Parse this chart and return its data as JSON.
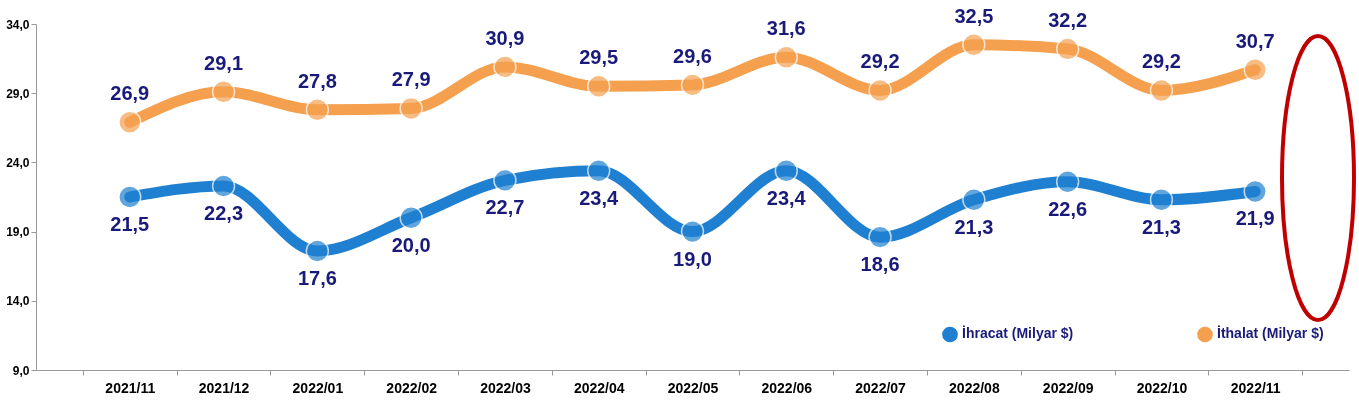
{
  "chart_data": {
    "type": "line",
    "categories": [
      "2021/11",
      "2021/12",
      "2022/01",
      "2022/02",
      "2022/03",
      "2022/04",
      "2022/05",
      "2022/06",
      "2022/07",
      "2022/08",
      "2022/09",
      "2022/10",
      "2022/11"
    ],
    "series": [
      {
        "name": "İhracat (Milyar $)",
        "color": "#1f7fd0",
        "values": [
          21.5,
          22.3,
          17.6,
          20.0,
          22.7,
          23.4,
          19.0,
          23.4,
          18.6,
          21.3,
          22.6,
          21.3,
          21.9
        ],
        "value_labels": [
          "21,5",
          "22,3",
          "17,6",
          "20,0",
          "22,7",
          "23,4",
          "19,0",
          "23,4",
          "18,6",
          "21,3",
          "22,6",
          "21,3",
          "21,9"
        ]
      },
      {
        "name": "İthalat (Milyar $)",
        "color": "#f5a04f",
        "values": [
          26.9,
          29.1,
          27.8,
          27.9,
          30.9,
          29.5,
          29.6,
          31.6,
          29.2,
          32.5,
          32.2,
          29.2,
          30.7
        ],
        "value_labels": [
          "26,9",
          "29,1",
          "27,8",
          "27,9",
          "30,9",
          "29,5",
          "29,6",
          "31,6",
          "29,2",
          "32,5",
          "32,2",
          "29,2",
          "30,7"
        ]
      }
    ],
    "ylim": [
      9,
      34
    ],
    "yticks": [
      {
        "value": 9,
        "label": "9,0"
      },
      {
        "value": 14,
        "label": "14,0"
      },
      {
        "value": 19,
        "label": "19,0"
      },
      {
        "value": 24,
        "label": "24,0"
      },
      {
        "value": 29,
        "label": "29,0"
      },
      {
        "value": 34,
        "label": "34,0"
      }
    ],
    "grid": false,
    "legend": "bottom right",
    "marker": "circle",
    "line_style": "solid"
  }
}
